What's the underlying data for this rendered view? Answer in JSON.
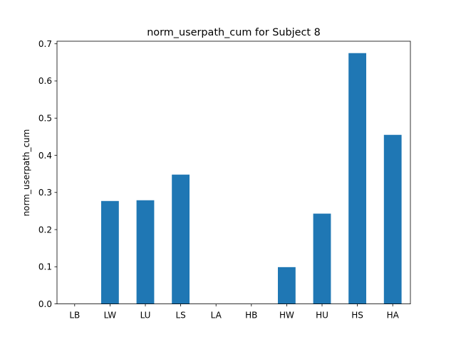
{
  "chart_data": {
    "type": "bar",
    "title": "norm_userpath_cum for Subject 8",
    "xlabel": "",
    "ylabel": "norm_userpath_cum",
    "categories": [
      "LB",
      "LW",
      "LU",
      "LS",
      "LA",
      "HB",
      "HW",
      "HU",
      "HS",
      "HA"
    ],
    "values": [
      0.0,
      0.277,
      0.279,
      0.348,
      0.0,
      0.0,
      0.099,
      0.243,
      0.675,
      0.455
    ],
    "ylim": [
      0,
      0.707
    ],
    "yticks": [
      0.0,
      0.1,
      0.2,
      0.3,
      0.4,
      0.5,
      0.6,
      0.7
    ],
    "ytick_labels": [
      "0.0",
      "0.1",
      "0.2",
      "0.3",
      "0.4",
      "0.5",
      "0.6",
      "0.7"
    ],
    "grid": false,
    "bar_color": "#1f77b4"
  }
}
